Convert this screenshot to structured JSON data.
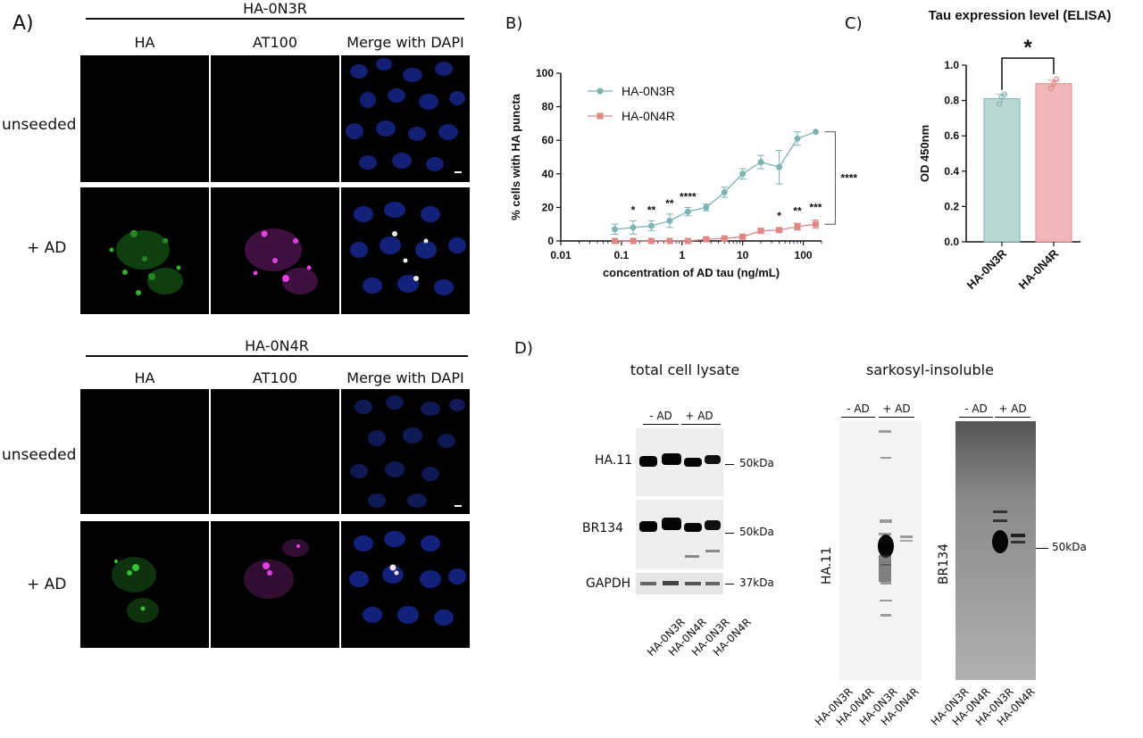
{
  "panelA": {
    "letter": "A)",
    "groups": [
      {
        "construct": "HA-0N3R",
        "cols": [
          "HA",
          "AT100",
          "Merge with DAPI"
        ],
        "rows": [
          "unseeded",
          "+ AD"
        ]
      },
      {
        "construct": "HA-0N4R",
        "cols": [
          "HA",
          "AT100",
          "Merge with DAPI"
        ],
        "rows": [
          "unseeded",
          "+ AD"
        ]
      }
    ]
  },
  "panelB": {
    "letter": "B)"
  },
  "panelC": {
    "letter": "C)"
  },
  "panelD": {
    "letter": "D)",
    "total_title": "total cell lysate",
    "insoluble_title": "sarkosyl-insoluble",
    "minus_ad": "- AD",
    "plus_ad": "+ AD",
    "rows": [
      "HA.11",
      "BR134",
      "GAPDH"
    ],
    "markers": [
      "50kDa",
      "50kDa",
      "37kDa"
    ],
    "lanes": [
      "HA-0N3R",
      "HA-0N4R",
      "HA-0N3R",
      "HA-0N4R"
    ],
    "blot_ha11": "HA.11",
    "blot_br134": "BR134",
    "blot_marker": "50kDa"
  },
  "chart_data": [
    {
      "type": "line",
      "xlabel": "concentration of AD tau (ng/mL)",
      "ylabel": "% cells with HA puncta",
      "xscale": "log",
      "xlim": [
        0.01,
        200
      ],
      "ylim": [
        0,
        100
      ],
      "xticks": [
        "0.01",
        "0.1",
        "1",
        "10",
        "100"
      ],
      "yticks": [
        "0",
        "20",
        "40",
        "60",
        "80",
        "100"
      ],
      "legend": "top-left",
      "series": [
        {
          "name": "HA-0N3R",
          "color": "#7fb3b3",
          "x": [
            0.078,
            0.156,
            0.3125,
            0.625,
            1.25,
            2.5,
            5,
            10,
            20,
            40,
            80,
            160
          ],
          "y": [
            7,
            8,
            9,
            12,
            17.5,
            20,
            29,
            40,
            47,
            44,
            61,
            65
          ],
          "err": [
            3,
            4,
            3,
            4,
            2.5,
            2,
            3,
            3,
            4,
            10,
            4,
            0
          ]
        },
        {
          "name": "HA-0N4R",
          "color": "#e08888",
          "x": [
            0.078,
            0.156,
            0.3125,
            0.625,
            1.25,
            2.5,
            5,
            10,
            20,
            40,
            80,
            160
          ],
          "y": [
            0,
            0,
            0,
            0,
            0,
            1,
            1.5,
            2.5,
            6,
            6.5,
            8.5,
            10
          ],
          "err": [
            0,
            0,
            0,
            0,
            0,
            0.5,
            0.5,
            1,
            1.5,
            1,
            2,
            2.5
          ]
        }
      ],
      "significance": [
        {
          "x": 0.156,
          "label": "*"
        },
        {
          "x": 0.3125,
          "label": "**"
        },
        {
          "x": 0.625,
          "label": "**"
        },
        {
          "x": 1.25,
          "label": "****"
        },
        {
          "x": 40,
          "label": "*"
        },
        {
          "x": 80,
          "label": "**"
        },
        {
          "x": 160,
          "label": "***"
        }
      ],
      "bracket_label": "****"
    },
    {
      "type": "bar",
      "title": "Tau expression level (ELISA)",
      "ylabel": "OD 450nm",
      "categories": [
        "HA-0N3R",
        "HA-0N4R"
      ],
      "values": [
        0.81,
        0.895
      ],
      "err": [
        0.025,
        0.02
      ],
      "points": [
        [
          0.78,
          0.82,
          0.835
        ],
        [
          0.87,
          0.895,
          0.92
        ]
      ],
      "colors": [
        "#b8d8d5",
        "#f1b6b8"
      ],
      "edge_colors": [
        "#7fb3b3",
        "#e08888"
      ],
      "ylim": [
        0,
        1.0
      ],
      "yticks": [
        "0.0",
        "0.2",
        "0.4",
        "0.6",
        "0.8",
        "1.0"
      ],
      "significance": "*"
    }
  ]
}
